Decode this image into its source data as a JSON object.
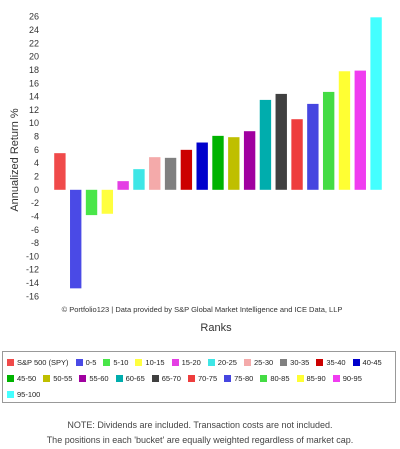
{
  "chart_data": {
    "type": "bar",
    "ylabel": "Annualized Return %",
    "xlabel": "Ranks",
    "ylim": [
      -17,
      27
    ],
    "yticks": [
      -16,
      -14,
      -12,
      -10,
      -8,
      -6,
      -4,
      -2,
      0,
      2,
      4,
      6,
      8,
      10,
      12,
      14,
      16,
      18,
      20,
      22,
      24,
      26
    ],
    "grid": false,
    "legend_position": "bottom",
    "credit": "© Portfolio123 | Data provided by S&P Global Market Intelligence and ICE Data, LLP",
    "categories": [
      "S&P 500 (SPY)",
      "0-5",
      "5-10",
      "10-15",
      "15-20",
      "20-25",
      "25-30",
      "30-35",
      "35-40",
      "40-45",
      "45-50",
      "50-55",
      "55-60",
      "60-65",
      "65-70",
      "70-75",
      "75-80",
      "80-85",
      "85-90",
      "90-95",
      "95-100"
    ],
    "values": [
      5.5,
      -14.8,
      -3.8,
      -3.6,
      1.3,
      3.1,
      4.9,
      4.8,
      6.0,
      7.1,
      8.1,
      7.9,
      8.8,
      13.5,
      14.4,
      10.6,
      12.9,
      14.7,
      17.8,
      17.9,
      25.9
    ],
    "colors": [
      "#f04a4a",
      "#4a4ae6",
      "#49e649",
      "#ffff3f",
      "#e43fe4",
      "#3ee6e6",
      "#f4aaaa",
      "#808080",
      "#cc0000",
      "#0000cc",
      "#00b300",
      "#bfbf00",
      "#a000a0",
      "#00adad",
      "#404040",
      "#ee3d3d",
      "#4646e0",
      "#44dc44",
      "#ffff33",
      "#f03cf0",
      "#44ffff"
    ]
  },
  "notes": [
    "NOTE: Dividends are included. Transaction costs are not included.",
    "The positions in each 'bucket' are equally weighted regardless of market cap."
  ]
}
